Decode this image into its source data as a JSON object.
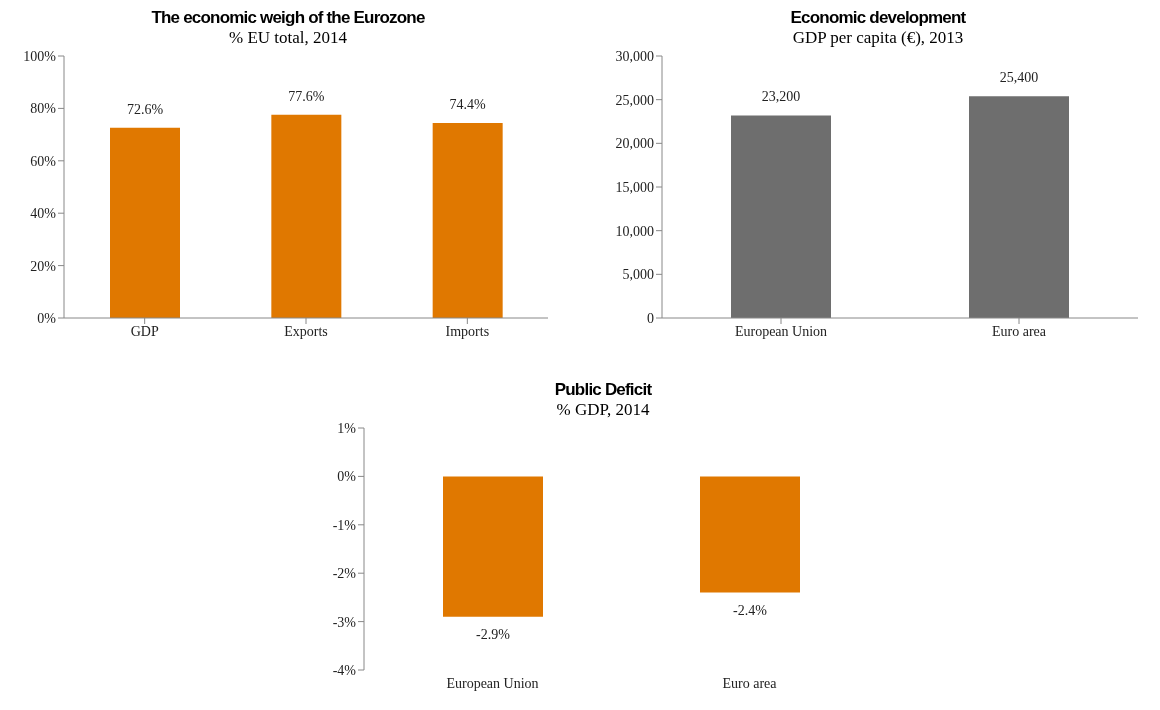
{
  "chart_data": [
    {
      "type": "bar",
      "title": "The economic weigh of the Eurozone",
      "subtitle": "% EU total, 2014",
      "categories": [
        "GDP",
        "Exports",
        "Imports"
      ],
      "values": [
        72.6,
        77.6,
        74.4
      ],
      "color": "#e07800",
      "value_labels": [
        "72.6%",
        "77.6%",
        "74.4%"
      ],
      "ylim": [
        0,
        100
      ],
      "yticks": [
        {
          "value": 0,
          "label": "0%"
        },
        {
          "value": 20,
          "label": "20%"
        },
        {
          "value": 40,
          "label": "40%"
        },
        {
          "value": 60,
          "label": "60%"
        },
        {
          "value": 80,
          "label": "80%"
        },
        {
          "value": 100,
          "label": "100%"
        }
      ],
      "grid": false,
      "legend": false
    },
    {
      "type": "bar",
      "title": "Economic development",
      "subtitle": "GDP per capita (€), 2013",
      "categories": [
        "European Union",
        "Euro area"
      ],
      "values": [
        23200,
        25400
      ],
      "color": "#6e6e6e",
      "value_labels": [
        "23,200",
        "25,400"
      ],
      "ylim": [
        0,
        30000
      ],
      "yticks": [
        0,
        {
          "value": 5000,
          "label": "5,000"
        },
        {
          "value": 10000,
          "label": "10,000"
        },
        {
          "value": 15000,
          "label": "15,000"
        },
        {
          "value": 20000,
          "label": "20,000"
        },
        {
          "value": 25000,
          "label": "25,000"
        },
        {
          "value": 30000,
          "label": "30,000"
        }
      ],
      "grid": false,
      "legend": false
    },
    {
      "type": "bar",
      "title": "Public Deficit",
      "subtitle": "% GDP, 2014",
      "categories": [
        "European Union",
        "Euro area"
      ],
      "values": [
        -2.9,
        -2.4
      ],
      "color": "#e07800",
      "value_labels": [
        "-2.9%",
        "-2.4%"
      ],
      "ylim": [
        -4,
        1
      ],
      "yticks": [
        {
          "value": -4,
          "label": "-4%"
        },
        {
          "value": -3,
          "label": "-3%"
        },
        {
          "value": -2,
          "label": "-2%"
        },
        {
          "value": -1,
          "label": "-1%"
        },
        {
          "value": 0,
          "label": "0%"
        },
        {
          "value": 1,
          "label": "1%"
        }
      ],
      "grid": false,
      "legend": false
    }
  ]
}
